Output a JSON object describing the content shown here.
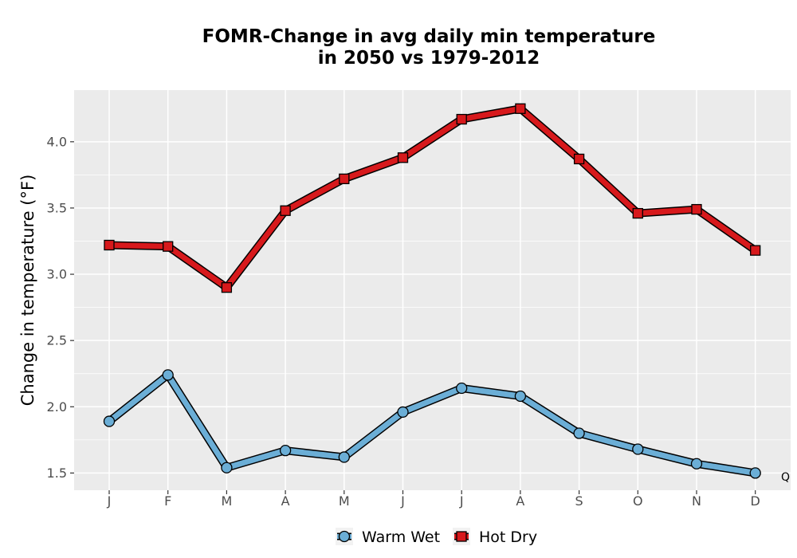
{
  "chart_data": {
    "type": "line",
    "title_lines": [
      "FOMR-Change in avg daily min temperature",
      "in 2050 vs 1979-2012"
    ],
    "xlabel": "",
    "ylabel": "Change in temperature (°F)",
    "categories": [
      "J",
      "F",
      "M",
      "A",
      "M",
      "J",
      "J",
      "A",
      "S",
      "O",
      "N",
      "D"
    ],
    "ylim": [
      1.37,
      4.39
    ],
    "yticks": [
      1.5,
      2.0,
      2.5,
      3.0,
      3.5,
      4.0
    ],
    "ytick_labels": [
      "1.5",
      "2.0",
      "2.5",
      "3.0",
      "3.5",
      "4.0"
    ],
    "grid": true,
    "legend_position": "bottom",
    "annotation": "Q",
    "series": [
      {
        "name": "Warm Wet",
        "marker": "circle",
        "color": "#6baed6",
        "values": [
          1.89,
          2.24,
          1.54,
          1.67,
          1.62,
          1.96,
          2.14,
          2.08,
          1.8,
          1.68,
          1.57,
          1.5
        ]
      },
      {
        "name": "Hot Dry",
        "marker": "square",
        "color": "#d7191c",
        "values": [
          3.22,
          3.21,
          2.9,
          3.48,
          3.72,
          3.88,
          4.17,
          4.25,
          3.87,
          3.46,
          3.49,
          3.18
        ]
      }
    ]
  }
}
